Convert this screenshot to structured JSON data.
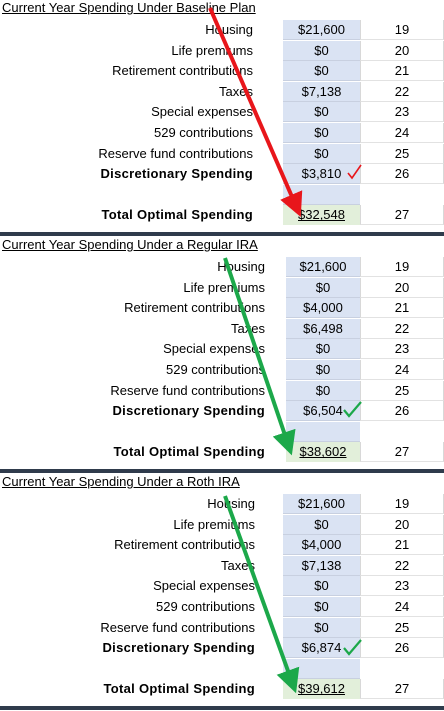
{
  "sections": [
    {
      "title": "Current Year Spending Under Baseline Plan",
      "rows": [
        {
          "label": "Housing",
          "value": "$21,600",
          "row": 19
        },
        {
          "label": "Life premiums",
          "value": "$0",
          "row": 20
        },
        {
          "label": "Retirement contributions",
          "value": "$0",
          "row": 21
        },
        {
          "label": "Taxes",
          "value": "$7,138",
          "row": 22
        },
        {
          "label": "Special expenses",
          "value": "$0",
          "row": 23
        },
        {
          "label": "529 contributions",
          "value": "$0",
          "row": 24
        },
        {
          "label": "Reserve fund contributions",
          "value": "$0",
          "row": 25
        },
        {
          "label": "Discretionary Spending",
          "value": "$3,810",
          "row": 26
        }
      ],
      "total": {
        "label": "Total Optimal Spending",
        "value": "$32,548",
        "row": 27
      }
    },
    {
      "title": "Current Year Spending Under a Regular IRA",
      "rows": [
        {
          "label": "Housing",
          "value": "$21,600",
          "row": 19
        },
        {
          "label": "Life premiums",
          "value": "$0",
          "row": 20
        },
        {
          "label": "Retirement contributions",
          "value": "$4,000",
          "row": 21
        },
        {
          "label": "Taxes",
          "value": "$6,498",
          "row": 22
        },
        {
          "label": "Special expenses",
          "value": "$0",
          "row": 23
        },
        {
          "label": "529 contributions",
          "value": "$0",
          "row": 24
        },
        {
          "label": "Reserve fund contributions",
          "value": "$0",
          "row": 25
        },
        {
          "label": "Discretionary Spending",
          "value": "$6,504",
          "row": 26
        }
      ],
      "total": {
        "label": "Total Optimal Spending",
        "value": "$38,602",
        "row": 27
      }
    },
    {
      "title": "Current Year Spending Under a Roth IRA",
      "rows": [
        {
          "label": "Housing",
          "value": "$21,600",
          "row": 19
        },
        {
          "label": "Life premiums",
          "value": "$0",
          "row": 20
        },
        {
          "label": "Retirement contributions",
          "value": "$4,000",
          "row": 21
        },
        {
          "label": "Taxes",
          "value": "$7,138",
          "row": 22
        },
        {
          "label": "Special expenses",
          "value": "$0",
          "row": 23
        },
        {
          "label": "529 contributions",
          "value": "$0",
          "row": 24
        },
        {
          "label": "Reserve fund contributions",
          "value": "$0",
          "row": 25
        },
        {
          "label": "Discretionary Spending",
          "value": "$6,874",
          "row": 26
        }
      ],
      "total": {
        "label": "Total Optimal Spending",
        "value": "$39,612",
        "row": 27
      }
    }
  ]
}
